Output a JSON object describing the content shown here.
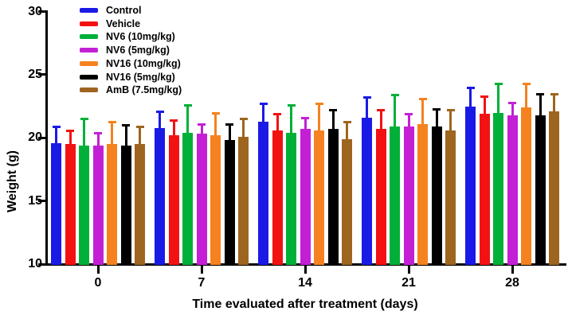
{
  "chart_data": {
    "type": "bar",
    "title": "",
    "xlabel": "Time evaluated after treatment (days)",
    "ylabel": "Weight (g)",
    "ylim": [
      10,
      30
    ],
    "yticks": [
      10,
      15,
      20,
      25,
      30
    ],
    "categories": [
      "0",
      "7",
      "14",
      "21",
      "28"
    ],
    "grid": false,
    "legend_position": "top-left-inside",
    "error_bars": "upper-only",
    "series": [
      {
        "name": "Control",
        "color": "#1a1ae6",
        "values": [
          19.6,
          20.8,
          21.3,
          21.6,
          22.5
        ],
        "errors": [
          1.3,
          1.3,
          1.4,
          1.6,
          1.5
        ]
      },
      {
        "name": "Vehicle",
        "color": "#f21212",
        "values": [
          19.5,
          20.2,
          20.6,
          20.7,
          21.9
        ],
        "errors": [
          1.1,
          1.2,
          1.3,
          1.5,
          1.4
        ]
      },
      {
        "name": "NV6 (10mg/kg)",
        "color": "#00b038",
        "values": [
          19.4,
          20.4,
          20.4,
          20.9,
          22.0
        ],
        "errors": [
          2.1,
          2.2,
          2.2,
          2.5,
          2.3
        ]
      },
      {
        "name": "NV6 (5mg/kg)",
        "color": "#c320d6",
        "values": [
          19.4,
          20.3,
          20.7,
          20.9,
          21.8
        ],
        "errors": [
          1.0,
          0.8,
          0.9,
          1.0,
          1.0
        ]
      },
      {
        "name": "NV16 (10mg/kg)",
        "color": "#f5821f",
        "values": [
          19.5,
          20.2,
          20.6,
          21.1,
          22.4
        ],
        "errors": [
          1.8,
          1.8,
          2.1,
          2.0,
          1.9
        ]
      },
      {
        "name": "NV16 (5mg/kg)",
        "color": "#000000",
        "values": [
          19.4,
          19.8,
          20.7,
          20.9,
          21.8
        ],
        "errors": [
          1.6,
          1.3,
          1.5,
          1.4,
          1.7
        ]
      },
      {
        "name": "AmB (7.5mg/kg)",
        "color": "#9e651f",
        "values": [
          19.5,
          20.1,
          19.9,
          20.6,
          22.1
        ],
        "errors": [
          1.4,
          1.4,
          1.4,
          1.6,
          1.4
        ]
      }
    ]
  }
}
